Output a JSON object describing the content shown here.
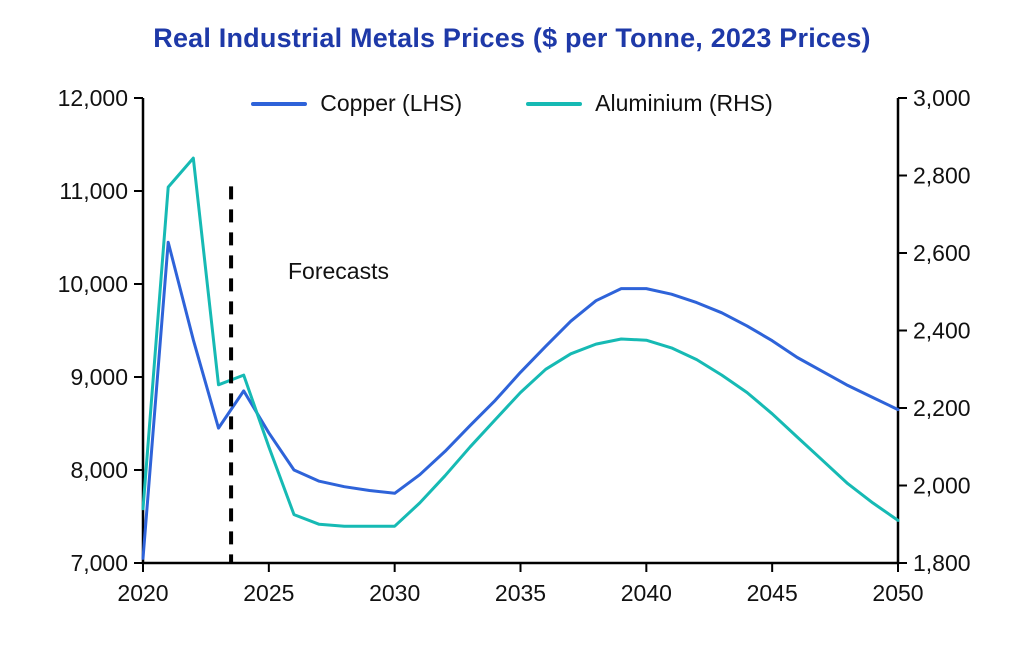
{
  "chart_data": {
    "type": "line",
    "title": "Real Industrial Metals Prices ($ per Tonne, 2023 Prices)",
    "title_color": "#1e39a8",
    "axis_color": "#000000",
    "text_color": "#111111",
    "grid": false,
    "legend_position": "top-center",
    "x_axis": {
      "min": 2020,
      "max": 2050,
      "ticks": [
        2020,
        2025,
        2030,
        2035,
        2040,
        2045,
        2050
      ],
      "tick_labels": [
        "2020",
        "2025",
        "2030",
        "2035",
        "2040",
        "2045",
        "2050"
      ]
    },
    "left_axis": {
      "min": 7000,
      "max": 12000,
      "ticks": [
        7000,
        8000,
        9000,
        10000,
        11000,
        12000
      ],
      "tick_labels": [
        "7,000",
        "8,000",
        "9,000",
        "10,000",
        "11,000",
        "12,000"
      ]
    },
    "right_axis": {
      "min": 1800,
      "max": 3000,
      "ticks": [
        1800,
        2000,
        2200,
        2400,
        2600,
        2800,
        3000
      ],
      "tick_labels": [
        "1,800",
        "2,000",
        "2,200",
        "2,400",
        "2,600",
        "2,800",
        "3,000"
      ]
    },
    "x": [
      2020,
      2021,
      2022,
      2023,
      2024,
      2025,
      2026,
      2027,
      2028,
      2029,
      2030,
      2031,
      2032,
      2033,
      2034,
      2035,
      2036,
      2037,
      2038,
      2039,
      2040,
      2041,
      2042,
      2043,
      2044,
      2045,
      2046,
      2047,
      2048,
      2049,
      2050
    ],
    "series": [
      {
        "name": "Copper (LHS)",
        "axis": "left",
        "color": "#2e63d9",
        "values": [
          7050,
          10450,
          9400,
          8450,
          8850,
          8400,
          8000,
          7880,
          7820,
          7780,
          7750,
          7950,
          8200,
          8480,
          8750,
          9050,
          9330,
          9600,
          9820,
          9950,
          9950,
          9890,
          9800,
          9690,
          9550,
          9390,
          9210,
          9060,
          8910,
          8780,
          8650
        ]
      },
      {
        "name": "Aluminium (RHS)",
        "axis": "right",
        "color": "#16bab4",
        "values": [
          1940,
          2770,
          2845,
          2260,
          2285,
          2100,
          1925,
          1900,
          1895,
          1895,
          1895,
          1955,
          2025,
          2100,
          2170,
          2240,
          2300,
          2340,
          2365,
          2378,
          2375,
          2355,
          2325,
          2285,
          2240,
          2185,
          2125,
          2065,
          2005,
          1955,
          1910
        ]
      }
    ],
    "annotations": {
      "forecast_label": "Forecasts",
      "forecast_line_x": 2023.5,
      "forecast_line_top_value_left_axis": 11050
    }
  }
}
